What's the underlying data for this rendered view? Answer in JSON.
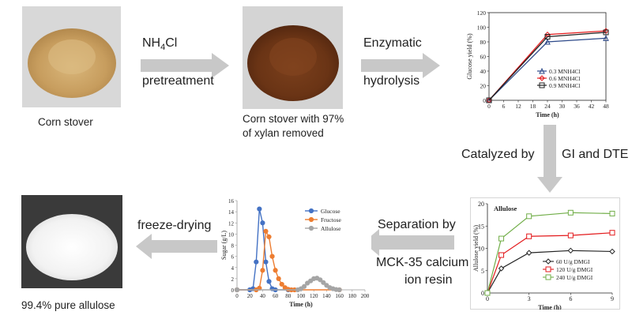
{
  "photos": [
    {
      "id": "corn-stover",
      "caption": "Corn stover"
    },
    {
      "id": "treated-stover",
      "caption_line1": "Corn stover with 97%",
      "caption_line2": "of xylan removed"
    },
    {
      "id": "allulose-powder",
      "caption": "99.4% pure allulose"
    }
  ],
  "steps": {
    "pretreatment": {
      "line1_main": "NH",
      "line1_sub": "4",
      "line1_tail": "Cl",
      "line2": "pretreatment"
    },
    "hydrolysis": {
      "line1": "Enzymatic",
      "line2": "hydrolysis"
    },
    "catalysis": {
      "prefix": "Catalyzed by",
      "suffix": "GI and DTE"
    },
    "separation": {
      "line1": "Separation by",
      "line2": "MCK-35 calcium",
      "line3": "ion resin"
    },
    "drying": {
      "label": "freeze-drying"
    }
  },
  "colors": {
    "arrow": "#c8c8c8",
    "blue": "#4472c4",
    "orange": "#ed7d31",
    "gray": "#a5a5a5",
    "red": "#e31a1c",
    "green": "#70ad47",
    "dark": "#222222",
    "navy": "#2e4a8a"
  },
  "chart_data": [
    {
      "id": "glucose-yield",
      "type": "line",
      "ylabel": "Glucose yield (%)",
      "xlabel": "Time (h)",
      "xlim": [
        0,
        48
      ],
      "ylim": [
        0,
        120
      ],
      "xticks": [
        "0",
        "6",
        "12",
        "18",
        "24",
        "30",
        "36",
        "42",
        "48"
      ],
      "yticks": [
        "0",
        "20",
        "40",
        "60",
        "80",
        "100",
        "120"
      ],
      "x": [
        0,
        24,
        48
      ],
      "series": [
        {
          "name": "0.3 MNH4Cl",
          "values": [
            0,
            80,
            85
          ],
          "color": "#2e4a8a",
          "marker": "triangle"
        },
        {
          "name": "0.6 MNH4Cl",
          "values": [
            0,
            90,
            95
          ],
          "color": "#e31a1c",
          "marker": "diamond"
        },
        {
          "name": "0.9 MNH4Cl",
          "values": [
            0,
            87,
            93
          ],
          "color": "#222222",
          "marker": "square"
        }
      ]
    },
    {
      "id": "allulose-yield",
      "type": "line",
      "title": "Allulose",
      "ylabel": "Allulose yield (%)",
      "xlabel": "Time (h)",
      "xlim": [
        0,
        9
      ],
      "ylim": [
        0,
        20
      ],
      "xticks": [
        "0",
        "3",
        "6",
        "9"
      ],
      "yticks": [
        "0",
        "5",
        "10",
        "15",
        "20"
      ],
      "x": [
        0,
        1,
        3,
        6,
        9
      ],
      "series": [
        {
          "name": "60 U/g DMGI",
          "values": [
            0,
            5.5,
            9,
            9.5,
            9.3
          ],
          "color": "#222222",
          "marker": "diamond"
        },
        {
          "name": "120 U/g DMGI",
          "values": [
            0,
            8.5,
            12.7,
            12.9,
            13.5
          ],
          "color": "#e31a1c",
          "marker": "square"
        },
        {
          "name": "240 U/g DMGI",
          "values": [
            0,
            12.2,
            17.2,
            18,
            17.8
          ],
          "color": "#70ad47",
          "marker": "square"
        }
      ]
    },
    {
      "id": "separation-profile",
      "type": "line",
      "ylabel": "Sugar (g/L)",
      "xlabel": "Time (h)",
      "xlim": [
        0,
        200
      ],
      "ylim": [
        0,
        16
      ],
      "xticks": [
        "0",
        "20",
        "40",
        "60",
        "80",
        "100",
        "120",
        "140",
        "160",
        "180",
        "200"
      ],
      "yticks": [
        "0",
        "2",
        "4",
        "6",
        "8",
        "10",
        "12",
        "14",
        "16"
      ],
      "series": [
        {
          "name": "Glucose",
          "color": "#4472c4",
          "x": [
            0,
            20,
            25,
            30,
            35,
            40,
            45,
            50,
            55,
            60,
            80
          ],
          "values": [
            0,
            0,
            0.2,
            5,
            14.5,
            12,
            5,
            1.5,
            0.2,
            0,
            0
          ]
        },
        {
          "name": "Fructose",
          "color": "#ed7d31",
          "x": [
            0,
            30,
            35,
            40,
            45,
            50,
            55,
            60,
            65,
            70,
            75,
            80,
            85,
            90,
            160
          ],
          "values": [
            0,
            0,
            0.3,
            3.5,
            10.5,
            9.5,
            6,
            3.5,
            2,
            1,
            0.4,
            0.1,
            0,
            0,
            0
          ]
        },
        {
          "name": "Allulose",
          "color": "#a5a5a5",
          "x": [
            0,
            95,
            100,
            105,
            110,
            115,
            120,
            125,
            130,
            135,
            140,
            145,
            150,
            155,
            160
          ],
          "values": [
            0,
            0,
            0.2,
            0.6,
            1.2,
            1.6,
            2,
            2.1,
            1.8,
            1.3,
            0.8,
            0.4,
            0.2,
            0.05,
            0
          ]
        }
      ]
    }
  ]
}
